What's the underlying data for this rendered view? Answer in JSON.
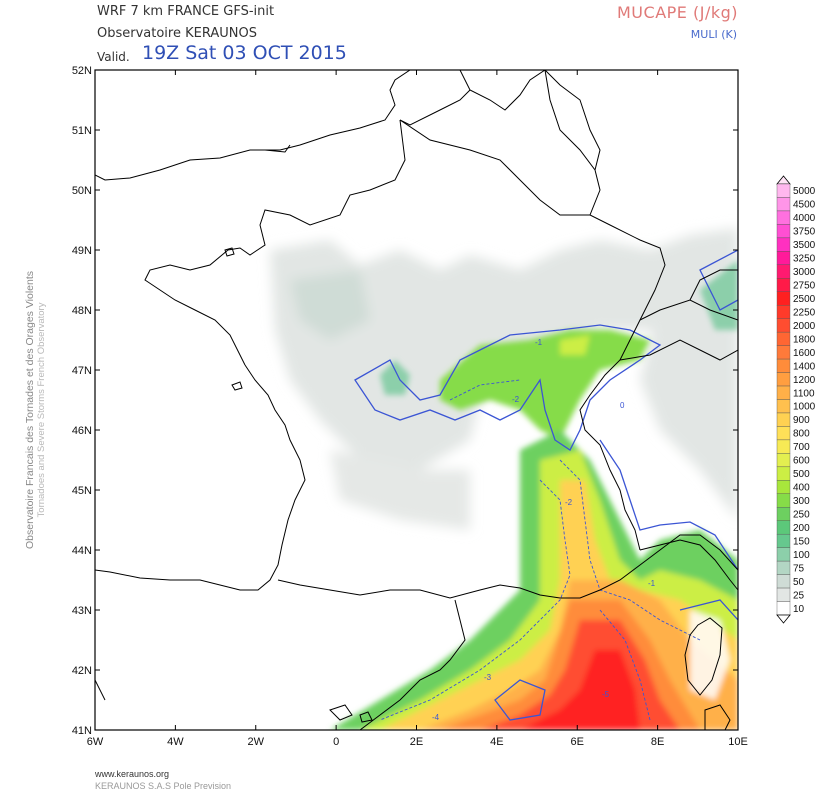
{
  "header": {
    "model": "WRF 7 km FRANCE  GFS-init",
    "organization": "Observatoire KERAUNOS",
    "valid_label": "Valid.",
    "valid_time": "19Z Sat 03 OCT 2015",
    "field_title": "MUCAPE (J/kg)",
    "contour_title": "MULI (K)"
  },
  "side_label": {
    "line1": "Observatoire Francais des Tornades et des Orages Violents",
    "line2": "Tornadoes and Severe Storms French Observatory"
  },
  "footer": {
    "url": "www.keraunos.org",
    "company": "KERAUNOS S.A.S Pole Prevision"
  },
  "map": {
    "lat_labels": [
      "52N",
      "51N",
      "50N",
      "49N",
      "48N",
      "47N",
      "46N",
      "45N",
      "44N",
      "43N",
      "42N",
      "41N"
    ],
    "lon_labels": [
      "6W",
      "4W",
      "2W",
      "0",
      "2E",
      "4E",
      "6E",
      "8E",
      "10E"
    ],
    "lat_range": [
      41,
      52
    ],
    "lon_range": [
      -6,
      10
    ],
    "contour_labels": [
      "-1",
      "-2",
      "-3",
      "-4",
      "-5",
      "0"
    ]
  },
  "colorbar": {
    "levels": [
      "5000",
      "4500",
      "4000",
      "3750",
      "3500",
      "3250",
      "3000",
      "2750",
      "2500",
      "2250",
      "2000",
      "1800",
      "1600",
      "1400",
      "1200",
      "1100",
      "1000",
      "900",
      "800",
      "700",
      "600",
      "500",
      "400",
      "300",
      "250",
      "200",
      "150",
      "100",
      "75",
      "50",
      "25",
      "10"
    ],
    "colors": [
      "#ffb7ee",
      "#ff95e8",
      "#ff70df",
      "#ff4fd3",
      "#ff30c0",
      "#ff1a9a",
      "#ff1a70",
      "#ff1a48",
      "#ff2020",
      "#ff3a2a",
      "#ff4d30",
      "#ff6633",
      "#ff7a3a",
      "#ff8c3a",
      "#ff9e40",
      "#ffb048",
      "#ffc04e",
      "#ffd152",
      "#ffe058",
      "#f7ea55",
      "#e3ef50",
      "#ccee44",
      "#a8e63c",
      "#86dc48",
      "#6dd060",
      "#5cc87a",
      "#66c88e",
      "#8ccfaa",
      "#b3d6c4",
      "#cfdcd6",
      "#e2e6e4",
      "#ffffff"
    ]
  }
}
